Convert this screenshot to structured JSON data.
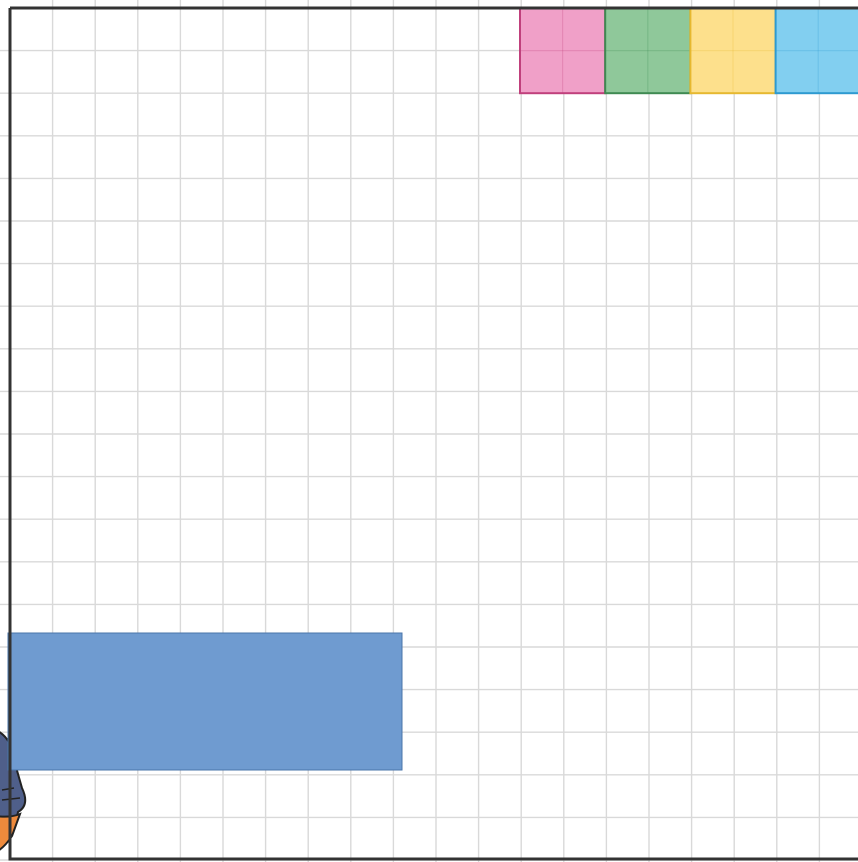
{
  "board": {
    "background_color": "#ffffff",
    "grid_color": "#d9d9d9",
    "border_color": "#333333"
  },
  "color_tiles": [
    {
      "name": "pink-tile",
      "fill": "#f0a0c8",
      "stroke": "#c0407c"
    },
    {
      "name": "green-tile",
      "fill": "#8fc89a",
      "stroke": "#3f8a52"
    },
    {
      "name": "yellow-tile",
      "fill": "#fde08c",
      "stroke": "#e6b830"
    },
    {
      "name": "blue-tile",
      "fill": "#82cff0",
      "stroke": "#2e9ad0"
    }
  ],
  "answer_box": {
    "fill": "#6f9bd0",
    "stroke": "#4a74aa"
  },
  "character": {
    "icon": "cartoon-character-icon",
    "colors": [
      "#4f5f8a",
      "#ee8a3c",
      "#222222"
    ]
  }
}
